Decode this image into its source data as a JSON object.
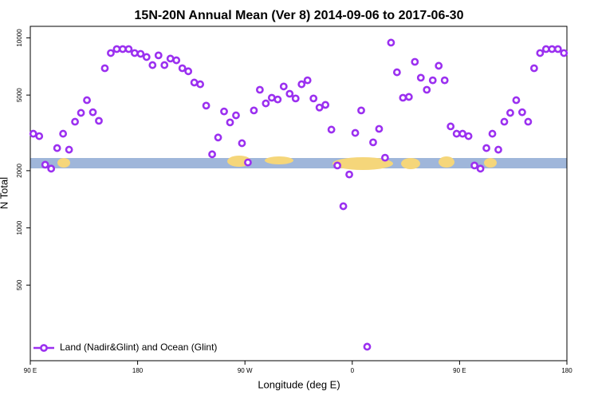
{
  "chart_data": {
    "type": "scatter",
    "title": "15N-20N Annual Mean (Ver 8)   2014-09-06 to 2017-06-30",
    "x_label": "Longitude (deg E)",
    "y_label": "N Total",
    "xlim": [
      90,
      540
    ],
    "ylim": [
      200,
      11500
    ],
    "log_y": true,
    "legend": "bottom left",
    "xticks": [
      {
        "value": 90,
        "label": "90 E"
      },
      180,
      {
        "value": 270,
        "label": "90 W"
      },
      {
        "value": 360,
        "label": "0"
      },
      {
        "value": 450,
        "label": "90 E"
      },
      {
        "value": 540,
        "label": "180"
      }
    ],
    "yticks": [
      500,
      1000,
      2000,
      5000,
      10000
    ],
    "series": [
      {
        "name": "Land (Nadir&Glint) and Ocean (Glint)",
        "color": "#9b30f0",
        "x": [
          92.5,
          97.5,
          102.5,
          107.5,
          112.5,
          117.5,
          122.5,
          127.5,
          132.5,
          137.5,
          142.5,
          147.5,
          152.5,
          157.5,
          162.5,
          167.5,
          172.5,
          177.5,
          182.5,
          187.5,
          192.5,
          197.5,
          202.5,
          207.5,
          212.5,
          217.5,
          222.5,
          227.5,
          232.5,
          237.5,
          242.5,
          247.5,
          252.5,
          257.5,
          262.5,
          267.5,
          272.5,
          277.5,
          282.5,
          287.5,
          292.5,
          297.5,
          302.5,
          307.5,
          312.5,
          317.5,
          322.5,
          327.5,
          332.5,
          337.5,
          342.5,
          347.5,
          352.5,
          357.5,
          362.5,
          367.5,
          372.5,
          377.5,
          382.5,
          387.5,
          392.5,
          397.5,
          402.5,
          407.5,
          412.5,
          417.5,
          422.5,
          427.5,
          432.5,
          437.5,
          442.5,
          447.5,
          452.5,
          457.5,
          462.5,
          467.5,
          472.5,
          477.5,
          482.5,
          487.5,
          492.5,
          497.5,
          502.5,
          507.5,
          512.5,
          517.5,
          522.5,
          527.5,
          532.5,
          537.5
        ],
        "values": [
          3130,
          3040,
          2150,
          2050,
          2630,
          3130,
          2580,
          3620,
          4030,
          4700,
          4060,
          3660,
          6920,
          8320,
          8730,
          8730,
          8730,
          8320,
          8240,
          7930,
          7190,
          8090,
          7190,
          7780,
          7620,
          6920,
          6670,
          5820,
          5700,
          4400,
          2440,
          2990,
          4100,
          3590,
          3910,
          2790,
          2210,
          4150,
          5330,
          4520,
          4840,
          4740,
          5550,
          5080,
          4800,
          5700,
          5980,
          4800,
          4300,
          4440,
          3290,
          2130,
          1300,
          1910,
          3160,
          4150,
          237,
          2820,
          3320,
          2340,
          9440,
          6590,
          4840,
          4890,
          7480,
          6170,
          5330,
          5980,
          7130,
          5980,
          3420,
          3130,
          3130,
          3040,
          2130,
          2050,
          2630,
          3130,
          2580,
          3620,
          4030,
          4700,
          4060,
          3620,
          6920,
          8320,
          8730,
          8730,
          8730,
          8320
        ]
      }
    ]
  }
}
